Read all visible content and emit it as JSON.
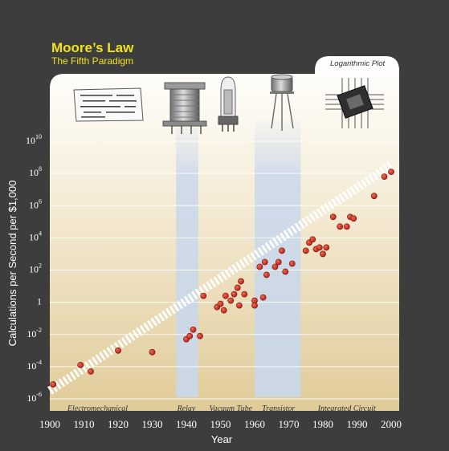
{
  "header": {
    "title": "Moore’s Law",
    "subtitle": "The Fifth Paradigm",
    "plot_note": "Logarithmic Plot"
  },
  "chart_data": {
    "type": "scatter",
    "xlabel": "Year",
    "ylabel": "Calculations per Second per $1,000",
    "xlim": [
      1900,
      2000
    ],
    "ylim_log10": [
      -6,
      10
    ],
    "scale": "log",
    "x_ticks": [
      "1900",
      "1910",
      "1920",
      "1930",
      "1940",
      "1950",
      "1960",
      "1970",
      "1980",
      "1990",
      "2000"
    ],
    "y_ticks": [
      {
        "base": "10",
        "exp": "10",
        "log": 10
      },
      {
        "base": "10",
        "exp": "8",
        "log": 8
      },
      {
        "base": "10",
        "exp": "6",
        "log": 6
      },
      {
        "base": "10",
        "exp": "4",
        "log": 4
      },
      {
        "base": "10",
        "exp": "2",
        "log": 2
      },
      {
        "base": "1",
        "exp": "",
        "log": 0
      },
      {
        "base": "10",
        "exp": "-2",
        "log": -2
      },
      {
        "base": "10",
        "exp": "-4",
        "log": -4
      },
      {
        "base": "10",
        "exp": "-6",
        "log": -6
      }
    ],
    "eras": [
      {
        "name": "Electromechanical",
        "label_x": 1914
      },
      {
        "name": "Relay",
        "label_x": 1940
      },
      {
        "name": "Vacuum Tube",
        "label_x": 1953
      },
      {
        "name": "Transistor",
        "label_x": 1967
      },
      {
        "name": "Integrated Circuit",
        "label_x": 1987
      }
    ],
    "highlight_bands": [
      {
        "from": 1937,
        "to": 1943.5
      },
      {
        "from": 1960,
        "to": 1973.5
      }
    ],
    "trend": {
      "x": [
        1900,
        2000
      ],
      "y_log10": [
        -5.5,
        8.5
      ]
    },
    "points": [
      {
        "x": 1901,
        "y_log10": -5.1
      },
      {
        "x": 1909,
        "y_log10": -3.9
      },
      {
        "x": 1912,
        "y_log10": -4.3
      },
      {
        "x": 1920,
        "y_log10": -3.0
      },
      {
        "x": 1930,
        "y_log10": -3.1
      },
      {
        "x": 1940,
        "y_log10": -2.3
      },
      {
        "x": 1941,
        "y_log10": -2.1
      },
      {
        "x": 1942,
        "y_log10": -1.7
      },
      {
        "x": 1944,
        "y_log10": -2.1
      },
      {
        "x": 1945,
        "y_log10": 0.4
      },
      {
        "x": 1949,
        "y_log10": -0.3
      },
      {
        "x": 1950,
        "y_log10": -0.1
      },
      {
        "x": 1951,
        "y_log10": -0.5
      },
      {
        "x": 1951.5,
        "y_log10": 0.4
      },
      {
        "x": 1953,
        "y_log10": 0.1
      },
      {
        "x": 1954,
        "y_log10": 0.5
      },
      {
        "x": 1955,
        "y_log10": 0.9
      },
      {
        "x": 1955.5,
        "y_log10": -0.2
      },
      {
        "x": 1956,
        "y_log10": 1.3
      },
      {
        "x": 1957,
        "y_log10": 0.5
      },
      {
        "x": 1960,
        "y_log10": 0.1
      },
      {
        "x": 1960,
        "y_log10": -0.2
      },
      {
        "x": 1961.5,
        "y_log10": 2.2
      },
      {
        "x": 1962.5,
        "y_log10": 0.3
      },
      {
        "x": 1963,
        "y_log10": 2.5
      },
      {
        "x": 1963.5,
        "y_log10": 1.7
      },
      {
        "x": 1966,
        "y_log10": 2.2
      },
      {
        "x": 1967,
        "y_log10": 2.5
      },
      {
        "x": 1968,
        "y_log10": 3.2
      },
      {
        "x": 1969,
        "y_log10": 1.9
      },
      {
        "x": 1971,
        "y_log10": 2.4
      },
      {
        "x": 1975,
        "y_log10": 3.2
      },
      {
        "x": 1976,
        "y_log10": 3.7
      },
      {
        "x": 1977,
        "y_log10": 3.9
      },
      {
        "x": 1978,
        "y_log10": 3.3
      },
      {
        "x": 1979,
        "y_log10": 3.4
      },
      {
        "x": 1980,
        "y_log10": 3.0
      },
      {
        "x": 1981,
        "y_log10": 3.4
      },
      {
        "x": 1983,
        "y_log10": 5.3
      },
      {
        "x": 1985,
        "y_log10": 4.7
      },
      {
        "x": 1987,
        "y_log10": 4.7
      },
      {
        "x": 1988,
        "y_log10": 5.3
      },
      {
        "x": 1989,
        "y_log10": 5.2
      },
      {
        "x": 1995,
        "y_log10": 6.6
      },
      {
        "x": 1998,
        "y_log10": 7.8
      },
      {
        "x": 2000,
        "y_log10": 8.1
      }
    ]
  },
  "colors": {
    "background": "#3d3d3d",
    "panel_top": "#ffffff",
    "panel_bottom": "#e3cfa1",
    "band": "#c8d8ee",
    "point": "#c8281e",
    "title": "#f2e21b"
  },
  "icons": [
    "punched-card-icon",
    "relay-icon",
    "vacuum-tube-icon",
    "transistor-icon",
    "integrated-circuit-icon"
  ]
}
